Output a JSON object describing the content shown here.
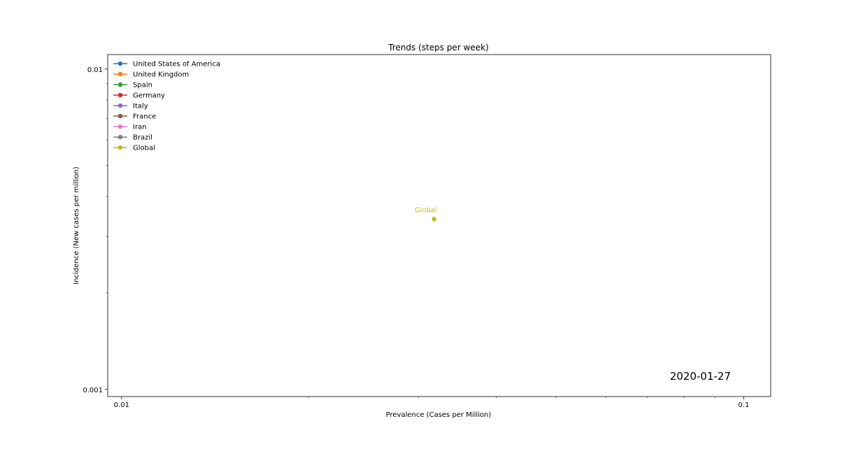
{
  "chart_data": {
    "type": "line",
    "title": "Trends (steps per week)",
    "xlabel": "Prevalence (Cases per Million)",
    "ylabel": "Incidence (New cases per million)",
    "x_scale": "log",
    "y_scale": "log",
    "xlim": [
      0.0095,
      0.1105
    ],
    "ylim": [
      0.00095,
      0.0111
    ],
    "x_ticks": [
      {
        "value": 0.01,
        "label": "0.01"
      },
      {
        "value": 0.1,
        "label": "0.1"
      }
    ],
    "y_ticks": [
      {
        "value": 0.01,
        "label": "0.01"
      },
      {
        "value": 0.001,
        "label": "0.001"
      }
    ],
    "grid": false,
    "legend_position": "top-left",
    "date_label": "2020-01-27",
    "series": [
      {
        "name": "United States of America",
        "color": "#1f77b4",
        "points": []
      },
      {
        "name": "United Kingdom",
        "color": "#ff7f0e",
        "points": []
      },
      {
        "name": "Spain",
        "color": "#2ca02c",
        "points": []
      },
      {
        "name": "Germany",
        "color": "#d62728",
        "points": []
      },
      {
        "name": "Italy",
        "color": "#9467bd",
        "points": []
      },
      {
        "name": "France",
        "color": "#8c564b",
        "points": []
      },
      {
        "name": "Iran",
        "color": "#e377c2",
        "points": []
      },
      {
        "name": "Brazil",
        "color": "#7f7f7f",
        "points": []
      },
      {
        "name": "Global",
        "color": "#bcbd22",
        "points": [
          {
            "x": 0.0318,
            "y": 0.0034
          }
        ],
        "annotation": "Global"
      }
    ]
  }
}
